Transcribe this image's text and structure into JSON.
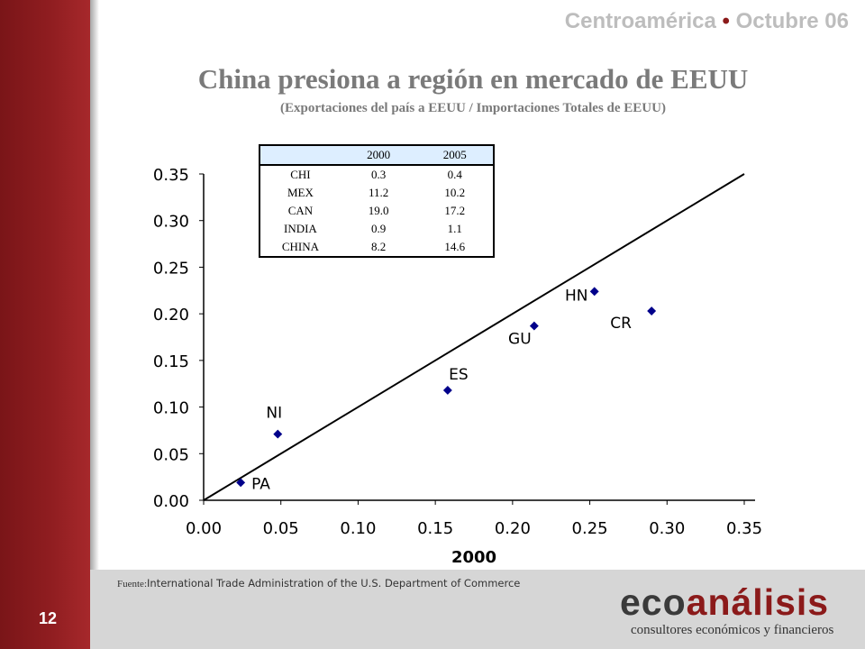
{
  "header": {
    "region": "Centroamérica",
    "separator": "•",
    "period": "Octubre 06"
  },
  "title": "China presiona a región en mercado de EEUU",
  "subtitle": "(Exportaciones del país a EEUU / Importaciones Totales de EEUU)",
  "table": {
    "headers": [
      "",
      "2000",
      "2005"
    ],
    "rows": [
      [
        "CHI",
        "0.3",
        "0.4"
      ],
      [
        "MEX",
        "11.2",
        "10.2"
      ],
      [
        "CAN",
        "19.0",
        "17.2"
      ],
      [
        "INDIA",
        "0.9",
        "1.1"
      ],
      [
        "CHINA",
        "8.2",
        "14.6"
      ]
    ]
  },
  "chart_data": {
    "type": "scatter",
    "xlabel": "2000",
    "ylabel": "",
    "xlim": [
      0,
      0.35
    ],
    "ylim": [
      0,
      0.35
    ],
    "xticks": [
      "0.00",
      "0.05",
      "0.10",
      "0.15",
      "0.20",
      "0.25",
      "0.30",
      "0.35"
    ],
    "yticks": [
      "0.00",
      "0.05",
      "0.10",
      "0.15",
      "0.20",
      "0.25",
      "0.30",
      "0.35"
    ],
    "points": [
      {
        "label": "PA",
        "x": 0.024,
        "y": 0.019
      },
      {
        "label": "NI",
        "x": 0.048,
        "y": 0.071
      },
      {
        "label": "ES",
        "x": 0.158,
        "y": 0.118
      },
      {
        "label": "GU",
        "x": 0.214,
        "y": 0.187
      },
      {
        "label": "HN",
        "x": 0.253,
        "y": 0.224
      },
      {
        "label": "CR",
        "x": 0.29,
        "y": 0.203
      }
    ],
    "reference_line": {
      "type": "diagonal",
      "from": [
        0,
        0
      ],
      "to": [
        0.35,
        0.35
      ]
    },
    "marker_color": "#00008b",
    "grid": false,
    "legend": "none"
  },
  "footer": {
    "source_label": "Fuente:",
    "source_text": "International Trade Administration  of the U.S. Department of Commerce",
    "page_number": "12"
  },
  "logo": {
    "part1": "eco",
    "part2": "análisis",
    "tagline": "consultores económicos y financieros"
  },
  "colors": {
    "sidebar": "#8f1d20",
    "accent": "#8b1a1a",
    "title_gray": "#7a7a7a",
    "footer_band": "#d6d6d6"
  }
}
